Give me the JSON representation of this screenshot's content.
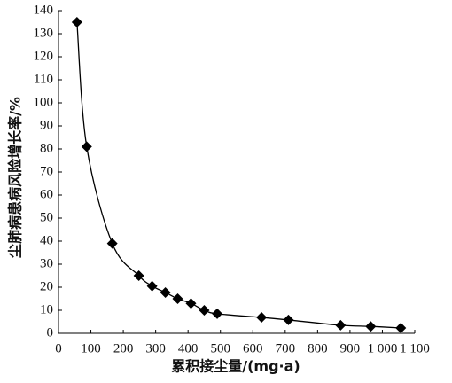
{
  "chart_data": {
    "type": "line",
    "x_label": "累积接尘量/(mg·a)",
    "y_label": "尘肺病患病风险增长率/%",
    "series": [
      {
        "color": "#000000",
        "x": [
          57,
          87,
          166,
          248,
          289,
          330,
          368,
          409,
          450,
          490,
          627,
          710,
          871,
          964,
          1057
        ],
        "values": [
          135,
          81,
          39,
          25,
          20.5,
          17.7,
          15,
          13,
          10,
          8.5,
          6.9,
          5.8,
          3.5,
          3,
          2.3
        ]
      }
    ],
    "xlim": [
      0,
      1100
    ],
    "xticks": [
      0,
      100,
      200,
      300,
      400,
      500,
      600,
      700,
      800,
      900,
      {
        "value": 1000,
        "label": "1 000"
      },
      {
        "value": 1100,
        "label": "1 100"
      }
    ],
    "ylim": [
      0,
      140
    ],
    "yticks": [
      0,
      10,
      20,
      30,
      40,
      50,
      60,
      70,
      80,
      90,
      100,
      110,
      120,
      130,
      140
    ]
  }
}
